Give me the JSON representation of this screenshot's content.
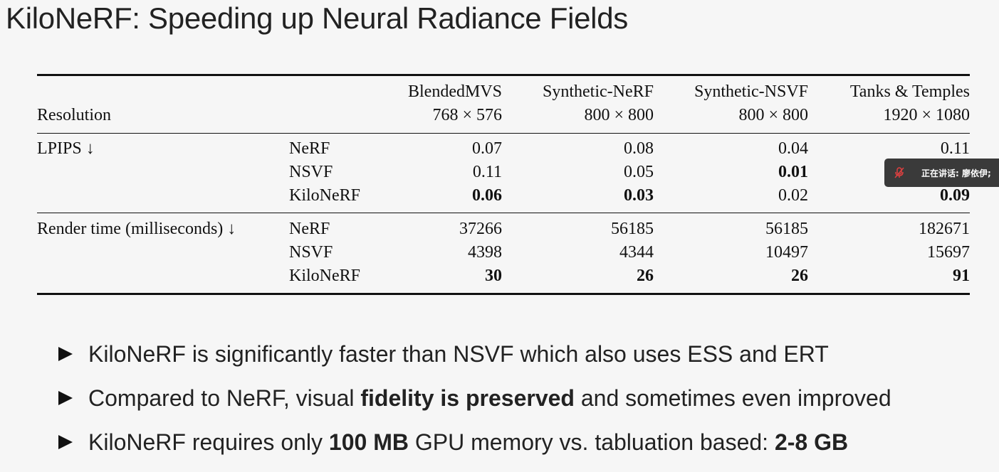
{
  "slide": {
    "title": "KiloNeRF: Speeding up Neural Radiance Fields"
  },
  "table": {
    "header": {
      "datasets": [
        "BlendedMVS",
        "Synthetic-NeRF",
        "Synthetic-NSVF",
        "Tanks & Temples"
      ],
      "row_label": "Resolution",
      "resolutions": [
        "768 × 576",
        "800 × 800",
        "800 × 800",
        "1920 × 1080"
      ]
    },
    "lpips": {
      "label": "LPIPS ↓",
      "rows": [
        {
          "method": "NeRF",
          "values": [
            "0.07",
            "0.08",
            "0.04",
            "0.11"
          ]
        },
        {
          "method": "NSVF",
          "values": [
            "0.11",
            "0.05",
            "0.01",
            ""
          ]
        },
        {
          "method": "KiloNeRF",
          "values": [
            "0.06",
            "0.03",
            "0.02",
            "0.09"
          ]
        }
      ]
    },
    "render": {
      "label": "Render time (milliseconds) ↓",
      "rows": [
        {
          "method": "NeRF",
          "values": [
            "37266",
            "56185",
            "56185",
            "182671"
          ]
        },
        {
          "method": "NSVF",
          "values": [
            "4398",
            "4344",
            "10497",
            "15697"
          ]
        },
        {
          "method": "KiloNeRF",
          "values": [
            "30",
            "26",
            "26",
            "91"
          ]
        }
      ]
    }
  },
  "bullets": [
    {
      "parts": [
        {
          "t": "KiloNeRF is significantly faster than NSVF which also uses ESS and ERT",
          "b": false
        }
      ]
    },
    {
      "parts": [
        {
          "t": "Compared to NeRF, visual ",
          "b": false
        },
        {
          "t": "fidelity is preserved",
          "b": true
        },
        {
          "t": " and sometimes even improved",
          "b": false
        }
      ]
    },
    {
      "parts": [
        {
          "t": "KiloNeRF requires only ",
          "b": false
        },
        {
          "t": "100 MB",
          "b": true
        },
        {
          "t": " GPU memory vs. tabluation based: ",
          "b": false
        },
        {
          "t": "2-8 GB",
          "b": true
        }
      ]
    }
  ],
  "overlay": {
    "speaking_text": "正在讲话: 廖依伊;",
    "mic_icon": "mic-muted-icon",
    "icon_color": "#e04040"
  }
}
